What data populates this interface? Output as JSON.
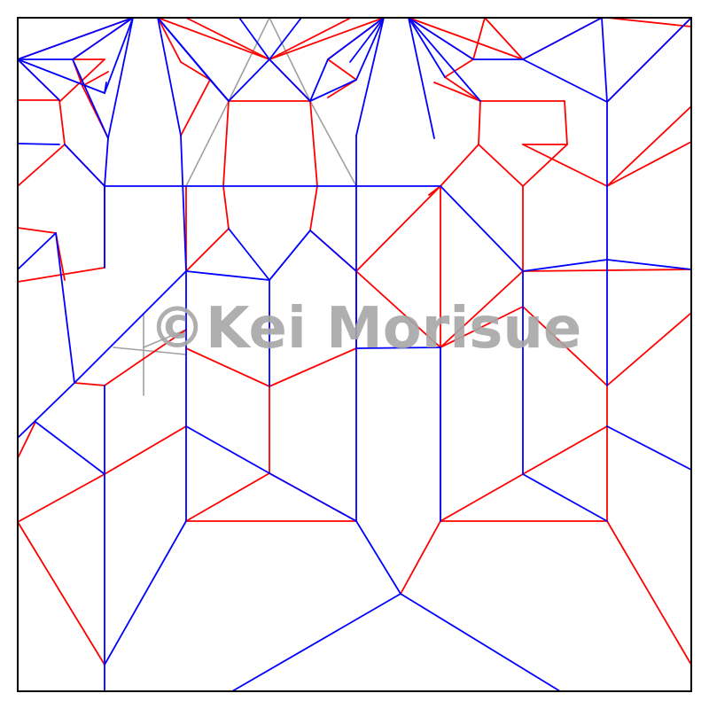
{
  "watermark": {
    "text": "©Kei Morisue"
  },
  "colors": {
    "mountain": "#0000ff",
    "valley": "#ff0000",
    "auxiliary": "#a0a0a0",
    "border": "#000000",
    "background": "#ffffff"
  },
  "legend_semantics": {
    "mountain_color_name": "blue",
    "valley_color_name": "red",
    "auxiliary_color_name": "gray"
  }
}
